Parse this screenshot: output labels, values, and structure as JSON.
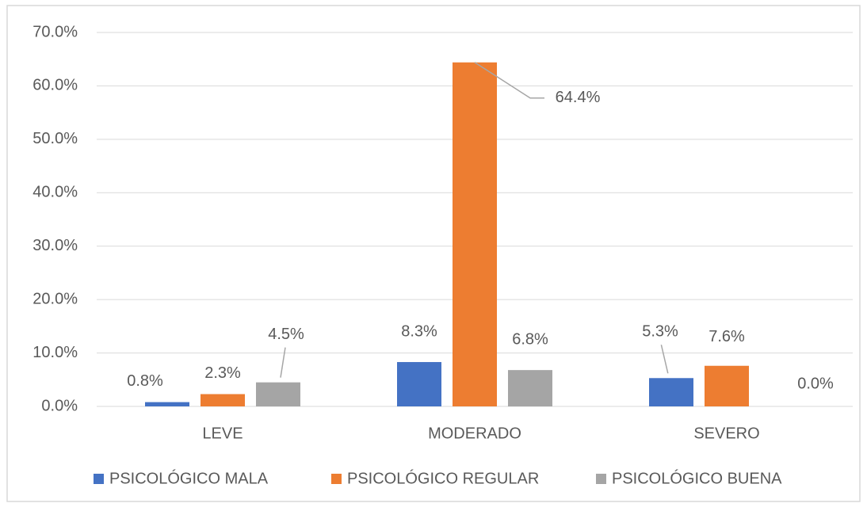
{
  "chart_data": {
    "type": "bar",
    "categories": [
      "LEVE",
      "MODERADO",
      "SEVERO"
    ],
    "series": [
      {
        "name": "PSICOLÓGICO MALA",
        "color": "#4472c4",
        "values": [
          0.8,
          8.3,
          5.3
        ],
        "value_labels": [
          "0.8%",
          "8.3%",
          "5.3%"
        ]
      },
      {
        "name": "PSICOLÓGICO REGULAR",
        "color": "#ed7d31",
        "values": [
          2.3,
          64.4,
          7.6
        ],
        "value_labels": [
          "2.3%",
          "64.4%",
          "7.6%"
        ]
      },
      {
        "name": "PSICOLÓGICO BUENA",
        "color": "#a5a5a5",
        "values": [
          4.5,
          6.8,
          0.0
        ],
        "value_labels": [
          "4.5%",
          "6.8%",
          "0.0%"
        ]
      }
    ],
    "ylim": [
      0,
      70
    ],
    "yticks": [
      {
        "value": 0,
        "label": "0.0%"
      },
      {
        "value": 10,
        "label": "10.0%"
      },
      {
        "value": 20,
        "label": "20.0%"
      },
      {
        "value": 30,
        "label": "30.0%"
      },
      {
        "value": 40,
        "label": "40.0%"
      },
      {
        "value": 50,
        "label": "50.0%"
      },
      {
        "value": 60,
        "label": "60.0%"
      },
      {
        "value": 70,
        "label": "70.0%"
      }
    ],
    "grid": true,
    "legend": "bottom"
  }
}
